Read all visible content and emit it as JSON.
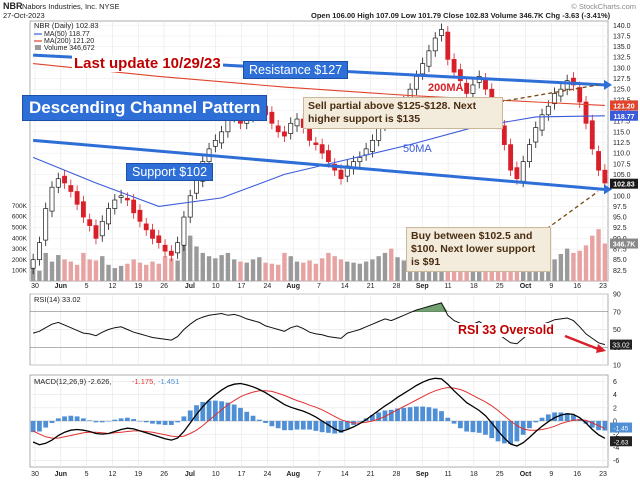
{
  "header": {
    "symbol": "NBR",
    "company": "Nabors Industries, Inc.",
    "exchange": "NYSE",
    "date": "27-Oct-2023",
    "brand": "© StockCharts.com",
    "ohlc": {
      "open": "Open 106.00",
      "high": "High 107.09",
      "low": "Low 101.79",
      "close": "Close 102.83",
      "volume": "Volume 346.7K",
      "change": "Chg -3.63 (-3.41%)"
    }
  },
  "legend": {
    "main": "NBR (Daily) 102.83",
    "ma50": "MA(50) 118.77",
    "ma200": "MA(200) 121.20",
    "volume": "Volume 346,672"
  },
  "annotations": {
    "last_update": "Last update 10/29/23",
    "resistance": "Resistance $127",
    "title": "Descending Channel Pattern",
    "support": "Support $102",
    "ma200_label": "200MA",
    "ma50_label": "50MA",
    "sell_note": "Sell partial above $125-$128. Next higher support is $135",
    "buy_note": "Buy between $102.5 and $100. Next lower support is $91",
    "rsi_note": "RSI 33 Oversold"
  },
  "colors": {
    "up": "#1a1a1a",
    "down": "#d9202a",
    "ma50": "#3b5bdb",
    "ma200": "#e0442c",
    "channel": "#2d6fd6",
    "volume_up": "#9a9a9a",
    "volume_down": "#e7a2a2",
    "macd": "#000000",
    "signal": "#e03030",
    "hist": "#4f8fd6",
    "rsi_fill": "#4f8a4f"
  },
  "price_axis": {
    "ticks": [
      "140.0",
      "137.5",
      "135.0",
      "132.5",
      "130.0",
      "127.5",
      "125.0",
      "122.5",
      "120.0",
      "117.5",
      "115.0",
      "112.5",
      "110.0",
      "107.5",
      "105.0",
      "102.5",
      "100.0",
      "97.5",
      "95.0",
      "92.5",
      "90.0",
      "87.5",
      "85.0",
      "82.5"
    ]
  },
  "price_axis_badges": {
    "ma200": "121.20",
    "ma50": "118.77",
    "last": "102.83"
  },
  "volume_axis": {
    "ticks": [
      "700K",
      "600K",
      "500K",
      "400K",
      "300K",
      "200K",
      "100K"
    ],
    "last_badge": "346.7K"
  },
  "rsi_axis": {
    "ticks": [
      "90",
      "70",
      "50",
      "30",
      "10"
    ],
    "badge": "33.02"
  },
  "macd_axis": {
    "ticks": [
      "6",
      "4",
      "2",
      "0",
      "-2",
      "-4",
      "-6"
    ],
    "badges": [
      "-1.45",
      "-2.63"
    ]
  },
  "rsi_legend": "RSI(14) 33.02",
  "macd_legend": {
    "label": "MACD(12,26,9)",
    "macd": "-2.626",
    "signal": "-1.175",
    "hist": "-1.451"
  },
  "x_labels": [
    "30",
    "Jun",
    "5",
    "12",
    "19",
    "26",
    "Jul",
    "10",
    "17",
    "24",
    "Aug",
    "7",
    "14",
    "21",
    "28",
    "Sep",
    "11",
    "18",
    "25",
    "Oct",
    "9",
    "16",
    "23"
  ],
  "chart_data": {
    "type": "candlestick",
    "title": "Descending Channel Pattern",
    "ylim": [
      80,
      141
    ],
    "closes": [
      85,
      89,
      97,
      102,
      104,
      103,
      101,
      98,
      95,
      93,
      90,
      94,
      97,
      99,
      100,
      99,
      96,
      94,
      92,
      90,
      89,
      87,
      86,
      89,
      95,
      100,
      104,
      108,
      111,
      113,
      115,
      118,
      119,
      117,
      118,
      120,
      121,
      119,
      117,
      115,
      114,
      117,
      118,
      116,
      113,
      112,
      110,
      108,
      106,
      104,
      107,
      108,
      109,
      111,
      113,
      116,
      119,
      118,
      120,
      122,
      125,
      128,
      131,
      134,
      137,
      139,
      132,
      129,
      127,
      124,
      126,
      128,
      125,
      121,
      117,
      112,
      106,
      104,
      108,
      112,
      116,
      119,
      121,
      124,
      125,
      127,
      126,
      122,
      117,
      111,
      106,
      103
    ],
    "ma50": {
      "name": "MA(50)",
      "start": 118.77,
      "path": [
        [
          0,
          109
        ],
        [
          10,
          103
        ],
        [
          20,
          97.5
        ],
        [
          30,
          99.5
        ],
        [
          40,
          105
        ],
        [
          50,
          108.5
        ],
        [
          60,
          112
        ],
        [
          70,
          116
        ],
        [
          80,
          118.5
        ],
        [
          91,
          118.77
        ]
      ]
    },
    "ma200": {
      "name": "MA(200)",
      "path": [
        [
          0,
          131
        ],
        [
          20,
          128
        ],
        [
          40,
          125.5
        ],
        [
          60,
          123.5
        ],
        [
          80,
          122
        ],
        [
          91,
          121.2
        ]
      ]
    },
    "resistance_line": {
      "from": 133,
      "to": 126
    },
    "support_line": {
      "from": 113,
      "to": 101.5
    },
    "volume": [
      120,
      95,
      260,
      180,
      240,
      200,
      180,
      150,
      260,
      200,
      190,
      230,
      150,
      120,
      140,
      160,
      200,
      170,
      150,
      180,
      160,
      230,
      210,
      190,
      350,
      420,
      320,
      260,
      230,
      210,
      240,
      260,
      200,
      180,
      170,
      200,
      220,
      170,
      160,
      150,
      260,
      230,
      180,
      170,
      190,
      160,
      210,
      260,
      230,
      200,
      180,
      170,
      160,
      180,
      200,
      230,
      260,
      300,
      220,
      190,
      230,
      280,
      330,
      280,
      300,
      250,
      290,
      310,
      240,
      220,
      230,
      210,
      200,
      260,
      330,
      300,
      280,
      240,
      230,
      200,
      190,
      210,
      220,
      200,
      250,
      300,
      260,
      280,
      330,
      420,
      480,
      347
    ],
    "rsi": [
      46,
      48,
      52,
      56,
      58,
      55,
      52,
      49,
      46,
      45,
      43,
      47,
      50,
      52,
      53,
      50,
      47,
      45,
      43,
      41,
      40,
      39,
      38,
      42,
      50,
      56,
      61,
      64,
      66,
      67,
      68,
      66,
      67,
      65,
      62,
      60,
      58,
      54,
      52,
      50,
      48,
      52,
      54,
      51,
      47,
      45,
      44,
      42,
      41,
      40,
      46,
      48,
      50,
      53,
      56,
      59,
      62,
      60,
      63,
      66,
      69,
      72,
      74,
      76,
      78,
      80,
      66,
      60,
      57,
      53,
      56,
      59,
      54,
      49,
      45,
      40,
      35,
      34,
      40,
      46,
      52,
      56,
      58,
      61,
      62,
      63,
      60,
      53,
      45,
      40,
      35,
      33
    ],
    "macd": [
      -3.2,
      -3.6,
      -3.4,
      -2.9,
      -2.2,
      -1.7,
      -1.4,
      -1.3,
      -1.4,
      -1.6,
      -1.9,
      -2.0,
      -1.9,
      -1.6,
      -1.3,
      -1.1,
      -1.2,
      -1.5,
      -1.8,
      -2.1,
      -2.4,
      -2.7,
      -2.9,
      -2.6,
      -1.6,
      -0.3,
      1.0,
      2.2,
      3.2,
      4.0,
      4.7,
      5.3,
      5.6,
      5.7,
      5.5,
      5.2,
      4.8,
      4.3,
      3.7,
      3.1,
      2.5,
      2.1,
      1.8,
      1.5,
      1.1,
      0.6,
      0.0,
      -0.6,
      -1.2,
      -1.6,
      -1.3,
      -0.9,
      -0.4,
      0.2,
      0.9,
      1.6,
      2.3,
      2.9,
      3.6,
      4.2,
      4.8,
      5.4,
      5.9,
      6.3,
      6.5,
      6.4,
      5.6,
      4.6,
      3.7,
      2.8,
      2.2,
      1.6,
      0.8,
      -0.3,
      -1.5,
      -2.6,
      -3.5,
      -3.8,
      -3.3,
      -2.5,
      -1.6,
      -0.8,
      -0.1,
      0.5,
      0.9,
      1.1,
      1.0,
      0.5,
      -0.3,
      -1.3,
      -2.1,
      -2.626
    ],
    "signal": [
      -1.5,
      -2.0,
      -2.4,
      -2.6,
      -2.6,
      -2.4,
      -2.2,
      -2.0,
      -1.8,
      -1.7,
      -1.7,
      -1.8,
      -1.9,
      -1.8,
      -1.7,
      -1.6,
      -1.5,
      -1.5,
      -1.6,
      -1.7,
      -1.9,
      -2.1,
      -2.3,
      -2.4,
      -2.3,
      -1.9,
      -1.4,
      -0.7,
      0.1,
      0.9,
      1.7,
      2.5,
      3.1,
      3.7,
      4.1,
      4.4,
      4.6,
      4.6,
      4.5,
      4.2,
      3.9,
      3.5,
      3.1,
      2.8,
      2.4,
      2.1,
      1.7,
      1.2,
      0.7,
      0.2,
      -0.1,
      -0.3,
      -0.3,
      -0.2,
      0.0,
      0.3,
      0.7,
      1.2,
      1.7,
      2.2,
      2.7,
      3.2,
      3.7,
      4.2,
      4.6,
      4.9,
      5.1,
      5.0,
      4.8,
      4.4,
      3.9,
      3.4,
      2.9,
      2.3,
      1.6,
      0.8,
      0.0,
      -0.7,
      -1.2,
      -1.4,
      -1.4,
      -1.3,
      -1.1,
      -0.8,
      -0.4,
      -0.1,
      0.1,
      0.2,
      0.1,
      -0.3,
      -0.7,
      -1.175
    ]
  }
}
